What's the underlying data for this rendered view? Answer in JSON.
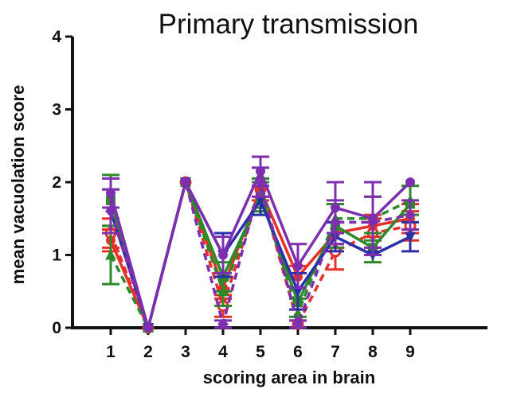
{
  "chart_data": {
    "type": "line",
    "title": "Primary transmission",
    "xlabel": "scoring area in brain",
    "ylabel": "mean vacuolation score",
    "categories": [
      "1",
      "2",
      "3",
      "4",
      "5",
      "6",
      "7",
      "8",
      "9"
    ],
    "yticks": [
      "0",
      "1",
      "2",
      "3",
      "4"
    ],
    "ylim": [
      0,
      4
    ],
    "grid": false,
    "legend": "none",
    "series": [
      {
        "color": "#e8302a",
        "line_style": "dashed",
        "marker": "circle-open",
        "values": [
          1.3,
          0,
          2.0,
          0.3,
          1.9,
          0.05,
          1.05,
          1.3,
          1.4
        ],
        "errors": [
          0.2,
          0,
          0,
          0.15,
          0.15,
          0.05,
          0.25,
          0.2,
          0.2
        ]
      },
      {
        "color": "#e8302a",
        "line_style": "solid",
        "marker": "circle",
        "values": [
          1.2,
          0,
          2.0,
          0.55,
          1.9,
          0.7,
          1.3,
          1.4,
          1.5
        ],
        "errors": [
          0.15,
          0,
          0,
          0.15,
          0.1,
          0.15,
          0.15,
          0.15,
          0.2
        ]
      },
      {
        "color": "#2c8a2c",
        "line_style": "dashed",
        "marker": "triangle",
        "values": [
          1.0,
          0,
          2.0,
          0.5,
          1.85,
          0.2,
          1.5,
          1.5,
          1.75
        ],
        "errors": [
          0.4,
          0,
          0,
          0.2,
          0.2,
          0.2,
          0.2,
          0.3,
          0.2
        ]
      },
      {
        "color": "#2c8a2c",
        "line_style": "solid",
        "marker": "square",
        "values": [
          1.75,
          0,
          2.0,
          0.7,
          1.8,
          0.35,
          1.4,
          1.1,
          1.7
        ],
        "errors": [
          0.35,
          0,
          0,
          0.2,
          0.2,
          0.2,
          0.3,
          0.2,
          0.25
        ]
      },
      {
        "color": "#2b2fa8",
        "line_style": "solid",
        "marker": "triangle-down",
        "values": [
          1.6,
          0,
          2.0,
          1.0,
          1.75,
          0.5,
          1.25,
          1.0,
          1.25
        ],
        "errors": [
          0.3,
          0,
          0,
          0.3,
          0.2,
          0.25,
          0.2,
          0,
          0.2
        ]
      },
      {
        "color": "#7d2fb0",
        "line_style": "dashed",
        "marker": "diamond",
        "values": [
          1.6,
          0,
          2.0,
          0.05,
          2.0,
          0.05,
          1.45,
          1.45,
          1.55
        ],
        "errors": [
          0.3,
          0,
          0,
          0.05,
          0.2,
          0.05,
          0.3,
          0.35,
          0.2
        ]
      },
      {
        "color": "#7d2fb0",
        "line_style": "solid",
        "marker": "circle",
        "values": [
          1.85,
          0,
          2.0,
          1.0,
          2.15,
          0.85,
          1.65,
          1.5,
          2.0
        ],
        "errors": [
          0.2,
          0,
          0,
          0.25,
          0.2,
          0.3,
          0.35,
          0.5,
          0
        ]
      }
    ]
  }
}
